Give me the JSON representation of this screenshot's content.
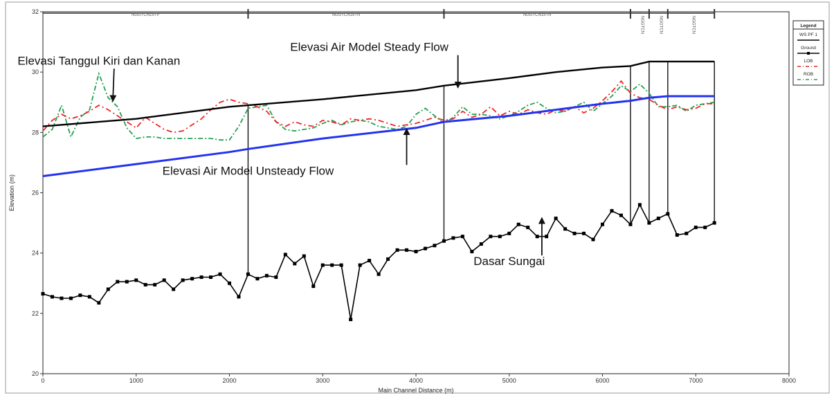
{
  "chart_data": {
    "type": "line",
    "title": "",
    "xlabel": "Main Channel Distance (m)",
    "ylabel": "Elevation (m)",
    "xlim": [
      0,
      8000
    ],
    "ylim": [
      20,
      32
    ],
    "x_ticks": [
      0,
      1000,
      2000,
      3000,
      4000,
      5000,
      6000,
      7000,
      8000
    ],
    "y_ticks": [
      20,
      22,
      24,
      26,
      28,
      30,
      32
    ],
    "grid": false,
    "legend_position": "top-right",
    "legend": {
      "title": "Legend",
      "entries": [
        "WS PF 1",
        "Ground",
        "LOB",
        "ROB"
      ]
    },
    "colors": {
      "steady": "#000000",
      "unsteady": "#2233ee",
      "ground": "#000000",
      "lob": "#ee2222",
      "rob": "#22a050"
    },
    "series": [
      {
        "name": "Ground",
        "x": [
          0,
          100,
          200,
          300,
          400,
          500,
          600,
          700,
          800,
          900,
          1000,
          1100,
          1200,
          1300,
          1400,
          1500,
          1600,
          1700,
          1800,
          1900,
          2000,
          2100,
          2200,
          2300,
          2400,
          2500,
          2600,
          2700,
          2800,
          2900,
          3000,
          3100,
          3200,
          3300,
          3400,
          3500,
          3600,
          3700,
          3800,
          3900,
          4000,
          4100,
          4200,
          4300,
          4400,
          4500,
          4600,
          4700,
          4800,
          4900,
          5000,
          5100,
          5200,
          5300,
          5400,
          5500,
          5600,
          5700,
          5800,
          5900,
          6000,
          6100,
          6200,
          6300,
          6400,
          6500,
          6600,
          6700,
          6800,
          6900,
          7000,
          7100,
          7200
        ],
        "values": [
          22.65,
          22.55,
          22.5,
          22.5,
          22.6,
          22.55,
          22.35,
          22.8,
          23.05,
          23.05,
          23.1,
          22.95,
          22.95,
          23.1,
          22.8,
          23.1,
          23.15,
          23.2,
          23.2,
          23.3,
          23.0,
          22.55,
          23.3,
          23.15,
          23.25,
          23.2,
          23.95,
          23.65,
          23.9,
          22.9,
          23.6,
          23.6,
          23.6,
          21.8,
          23.6,
          23.75,
          23.3,
          23.8,
          24.1,
          24.1,
          24.05,
          24.15,
          24.25,
          24.4,
          24.5,
          24.55,
          24.05,
          24.3,
          24.55,
          24.55,
          24.65,
          24.95,
          24.85,
          24.55,
          24.55,
          25.15,
          24.8,
          24.65,
          24.65,
          24.45,
          24.95,
          25.4,
          25.25,
          24.95,
          25.6,
          25.0,
          25.15,
          25.3,
          24.6,
          24.65,
          24.85,
          24.85,
          25.0
        ]
      },
      {
        "name": "WS PF 1",
        "x": [
          0,
          1000,
          2000,
          2200,
          3000,
          4000,
          4300,
          5000,
          5500,
          6000,
          6300,
          6500,
          6700,
          7200
        ],
        "values": [
          28.2,
          28.45,
          28.85,
          28.9,
          29.1,
          29.4,
          29.55,
          29.8,
          30.0,
          30.15,
          30.2,
          30.35,
          30.35,
          30.35
        ]
      },
      {
        "name": "Unsteady",
        "x": [
          0,
          1000,
          2000,
          2200,
          3000,
          4000,
          4300,
          5000,
          5500,
          6000,
          6300,
          6500,
          6700,
          7200
        ],
        "values": [
          26.55,
          26.95,
          27.35,
          27.45,
          27.8,
          28.15,
          28.35,
          28.55,
          28.75,
          28.95,
          29.05,
          29.15,
          29.2,
          29.2
        ]
      },
      {
        "name": "LOB",
        "x": [
          0,
          100,
          200,
          300,
          400,
          500,
          600,
          700,
          800,
          900,
          1000,
          1100,
          1200,
          1300,
          1400,
          1500,
          1600,
          1700,
          1800,
          1900,
          2000,
          2100,
          2200,
          2300,
          2400,
          2500,
          2600,
          2700,
          2800,
          2900,
          3000,
          3100,
          3200,
          3300,
          3400,
          3500,
          3600,
          3700,
          3800,
          3900,
          4000,
          4100,
          4200,
          4300,
          4400,
          4500,
          4600,
          4700,
          4800,
          4900,
          5000,
          5100,
          5200,
          5300,
          5400,
          5500,
          5600,
          5700,
          5800,
          5900,
          6000,
          6100,
          6200,
          6300,
          6400,
          6500,
          6600,
          6700,
          6800,
          6900,
          7000,
          7100,
          7200
        ],
        "values": [
          28.05,
          28.4,
          28.6,
          28.45,
          28.55,
          28.7,
          28.9,
          28.75,
          28.55,
          28.35,
          28.15,
          28.5,
          28.3,
          28.1,
          28.0,
          28.05,
          28.25,
          28.45,
          28.75,
          29.0,
          29.1,
          29.0,
          28.95,
          28.85,
          28.7,
          28.35,
          28.2,
          28.35,
          28.25,
          28.2,
          28.4,
          28.35,
          28.25,
          28.45,
          28.4,
          28.45,
          28.4,
          28.3,
          28.2,
          28.25,
          28.3,
          28.4,
          28.5,
          28.4,
          28.45,
          28.7,
          28.5,
          28.6,
          28.85,
          28.55,
          28.7,
          28.6,
          28.75,
          28.65,
          28.6,
          28.75,
          28.7,
          28.85,
          28.65,
          28.8,
          29.05,
          29.35,
          29.7,
          29.3,
          29.15,
          29.1,
          28.9,
          28.75,
          28.85,
          28.75,
          28.8,
          28.95,
          28.95
        ]
      },
      {
        "name": "ROB",
        "x": [
          0,
          100,
          200,
          300,
          400,
          500,
          600,
          700,
          800,
          900,
          1000,
          1100,
          1200,
          1300,
          1400,
          1500,
          1600,
          1700,
          1800,
          1900,
          2000,
          2100,
          2200,
          2300,
          2400,
          2500,
          2600,
          2700,
          2800,
          2900,
          3000,
          3100,
          3200,
          3300,
          3400,
          3500,
          3600,
          3700,
          3800,
          3900,
          4000,
          4100,
          4200,
          4300,
          4400,
          4500,
          4600,
          4700,
          4800,
          4900,
          5000,
          5100,
          5200,
          5300,
          5400,
          5500,
          5600,
          5700,
          5800,
          5900,
          6000,
          6100,
          6200,
          6300,
          6400,
          6500,
          6600,
          6700,
          6800,
          6900,
          7000,
          7100,
          7200
        ],
        "values": [
          27.85,
          28.1,
          28.9,
          27.85,
          28.5,
          28.75,
          29.95,
          29.15,
          28.85,
          28.15,
          27.8,
          27.85,
          27.85,
          27.8,
          27.8,
          27.8,
          27.8,
          27.8,
          27.8,
          27.75,
          27.75,
          28.2,
          28.8,
          28.85,
          28.9,
          28.35,
          28.1,
          28.05,
          28.1,
          28.15,
          28.3,
          28.4,
          28.25,
          28.35,
          28.4,
          28.35,
          28.2,
          28.15,
          28.1,
          28.2,
          28.6,
          28.8,
          28.55,
          28.3,
          28.5,
          28.85,
          28.6,
          28.6,
          28.55,
          28.45,
          28.55,
          28.7,
          28.9,
          29.0,
          28.8,
          28.65,
          28.7,
          28.85,
          29.0,
          28.7,
          28.95,
          29.2,
          29.55,
          29.35,
          29.6,
          29.3,
          28.85,
          28.85,
          28.9,
          28.7,
          28.9,
          28.95,
          29.0
        ]
      }
    ],
    "section_xs": [
      2200,
      4300,
      6300,
      6500,
      6700,
      7200
    ],
    "annotations": [
      {
        "text": "Elevasi Tanggul Kiri dan Kanan",
        "x": 600,
        "y": 30.25,
        "arrow_to": [
          750,
          29.05
        ]
      },
      {
        "text": "Elevasi Air Model Steady Flow",
        "x": 3500,
        "y": 30.7,
        "arrow_to": [
          4450,
          29.5
        ]
      },
      {
        "text": "Elevasi Air Model Unsteady Flow",
        "x": 2200,
        "y": 26.6,
        "arrow_to": [
          3900,
          28.1
        ]
      },
      {
        "text": "Dasar Sungai",
        "x": 5000,
        "y": 23.6,
        "arrow_to": [
          5350,
          25.15
        ]
      }
    ],
    "reach_labels": [
      "NGGTCN15TP",
      "NGGTCN15TN",
      "NGGTCN15TN",
      "NGGTCN",
      "NGGTCN",
      "NGGTCN"
    ]
  }
}
